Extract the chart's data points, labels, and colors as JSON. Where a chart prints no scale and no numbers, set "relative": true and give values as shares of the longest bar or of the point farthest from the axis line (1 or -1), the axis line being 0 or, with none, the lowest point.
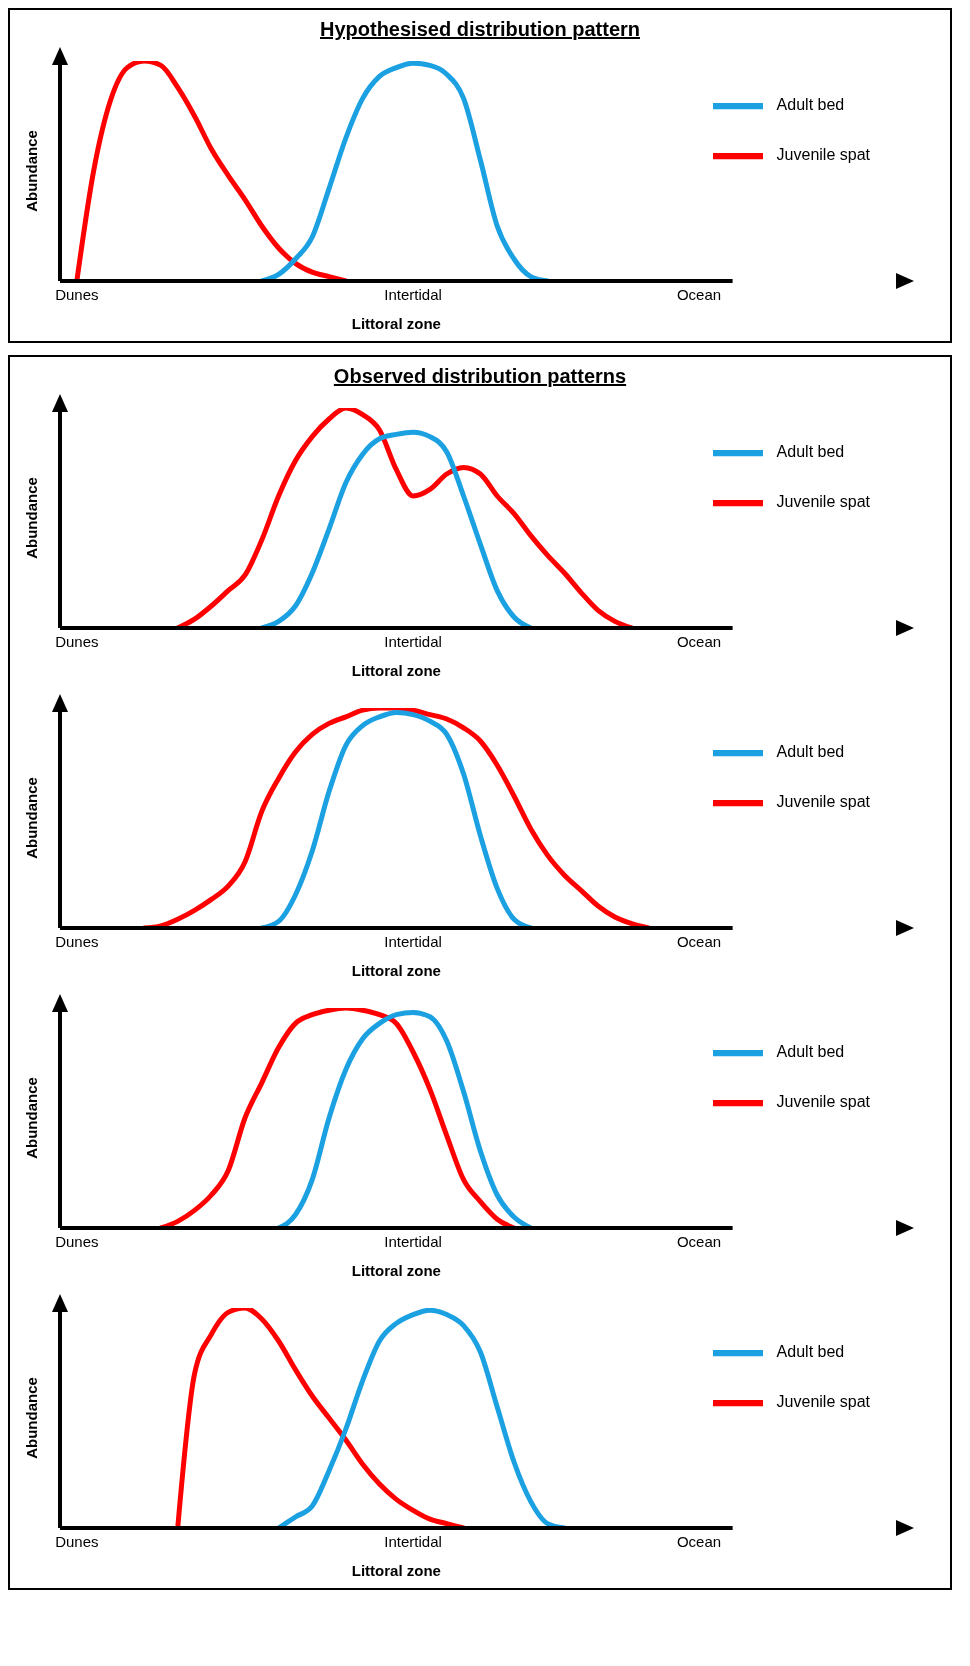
{
  "chart_data": [
    {
      "type": "line",
      "title": "Hypothesised distribution pattern",
      "xlabel": "Littoral zone",
      "ylabel": "Abundance",
      "relative": true,
      "legend": "top right",
      "categories": [
        null,
        "Dunes",
        null,
        null,
        null,
        null,
        null,
        null,
        null,
        null,
        null,
        null,
        null,
        null,
        null,
        null,
        null,
        null,
        null,
        null,
        null,
        "Intertidal",
        null,
        null,
        null,
        null,
        null,
        null,
        null,
        null,
        null,
        null,
        null,
        null,
        null,
        null,
        null,
        null,
        "Ocean",
        null,
        null
      ],
      "series": [
        {
          "name": "Juvenile spat",
          "color": "#ff0000",
          "values": [
            null,
            0,
            0.5,
            0.82,
            0.97,
            1.0,
            0.98,
            0.88,
            0.75,
            0.6,
            0.48,
            0.37,
            0.25,
            0.15,
            0.08,
            0.04,
            0.02,
            0,
            null,
            null,
            null,
            null,
            null,
            null,
            null,
            null,
            null,
            null,
            null,
            null,
            null,
            null,
            null,
            null,
            null,
            null,
            null,
            null,
            null,
            null,
            null
          ]
        },
        {
          "name": "Adult bed",
          "color": "#1ba1e2",
          "values": [
            null,
            null,
            null,
            null,
            null,
            null,
            null,
            null,
            null,
            null,
            null,
            null,
            0,
            0.03,
            0.1,
            0.2,
            0.42,
            0.65,
            0.83,
            0.93,
            0.97,
            0.99,
            0.98,
            0.94,
            0.83,
            0.55,
            0.25,
            0.1,
            0.02,
            0,
            null,
            null,
            null,
            null,
            null,
            null,
            null,
            null,
            null,
            null,
            null
          ]
        }
      ]
    },
    {
      "type": "line",
      "title": "Observed distribution patterns",
      "xlabel": "Littoral zone",
      "ylabel": "Abundance",
      "relative": true,
      "legend": "top right",
      "categories": [
        null,
        "Dunes",
        null,
        null,
        null,
        null,
        null,
        null,
        null,
        null,
        null,
        null,
        null,
        null,
        null,
        null,
        null,
        null,
        null,
        null,
        null,
        "Intertidal",
        null,
        null,
        null,
        null,
        null,
        null,
        null,
        null,
        null,
        null,
        null,
        null,
        null,
        null,
        null,
        null,
        "Ocean",
        null,
        null
      ],
      "series": [
        {
          "name": "Juvenile spat",
          "color": "#ff0000",
          "values": [
            null,
            null,
            null,
            null,
            null,
            null,
            null,
            0,
            0.04,
            0.1,
            0.17,
            0.24,
            0.4,
            0.6,
            0.76,
            0.87,
            0.95,
            1.0,
            0.97,
            0.9,
            0.72,
            0.6,
            0.63,
            0.7,
            0.73,
            0.7,
            0.6,
            0.52,
            0.42,
            0.33,
            0.25,
            0.16,
            0.08,
            0.03,
            0,
            null,
            null,
            null,
            null,
            null,
            null
          ]
        },
        {
          "name": "Adult bed",
          "color": "#1ba1e2",
          "values": [
            null,
            null,
            null,
            null,
            null,
            null,
            null,
            null,
            null,
            null,
            null,
            null,
            0,
            0.03,
            0.1,
            0.25,
            0.45,
            0.66,
            0.79,
            0.86,
            0.88,
            0.89,
            0.87,
            0.8,
            0.6,
            0.38,
            0.17,
            0.05,
            0,
            null,
            null,
            null,
            null,
            null,
            null,
            null,
            null,
            null,
            null,
            null,
            null
          ]
        }
      ]
    },
    {
      "type": "line",
      "xlabel": "Littoral zone",
      "ylabel": "Abundance",
      "relative": true,
      "legend": "top right",
      "categories": [
        null,
        "Dunes",
        null,
        null,
        null,
        null,
        null,
        null,
        null,
        null,
        null,
        null,
        null,
        null,
        null,
        null,
        null,
        null,
        null,
        null,
        null,
        "Intertidal",
        null,
        null,
        null,
        null,
        null,
        null,
        null,
        null,
        null,
        null,
        null,
        null,
        null,
        null,
        null,
        null,
        "Ocean",
        null,
        null
      ],
      "series": [
        {
          "name": "Juvenile spat",
          "color": "#ff0000",
          "values": [
            null,
            null,
            null,
            null,
            null,
            0,
            0.01,
            0.04,
            0.08,
            0.13,
            0.19,
            0.3,
            0.53,
            0.68,
            0.8,
            0.88,
            0.93,
            0.96,
            0.99,
            1.0,
            1.0,
            0.99,
            0.97,
            0.95,
            0.91,
            0.85,
            0.74,
            0.6,
            0.45,
            0.33,
            0.24,
            0.17,
            0.1,
            0.05,
            0.02,
            0,
            null,
            null,
            null,
            null,
            null
          ]
        },
        {
          "name": "Adult bed",
          "color": "#1ba1e2",
          "values": [
            null,
            null,
            null,
            null,
            null,
            null,
            null,
            null,
            null,
            null,
            null,
            null,
            0,
            0.03,
            0.15,
            0.35,
            0.62,
            0.83,
            0.92,
            0.96,
            0.98,
            0.97,
            0.94,
            0.88,
            0.7,
            0.42,
            0.18,
            0.04,
            0,
            null,
            null,
            null,
            null,
            null,
            null,
            null,
            null,
            null,
            null,
            null,
            null
          ]
        }
      ]
    },
    {
      "type": "line",
      "xlabel": "Littoral zone",
      "ylabel": "Abundance",
      "relative": true,
      "legend": "top right",
      "categories": [
        null,
        "Dunes",
        null,
        null,
        null,
        null,
        null,
        null,
        null,
        null,
        null,
        null,
        null,
        null,
        null,
        null,
        null,
        null,
        null,
        null,
        null,
        "Intertidal",
        null,
        null,
        null,
        null,
        null,
        null,
        null,
        null,
        null,
        null,
        null,
        null,
        null,
        null,
        null,
        null,
        "Ocean",
        null,
        null
      ],
      "series": [
        {
          "name": "Juvenile spat",
          "color": "#ff0000",
          "values": [
            null,
            null,
            null,
            null,
            null,
            null,
            0,
            0.03,
            0.08,
            0.15,
            0.26,
            0.5,
            0.66,
            0.82,
            0.93,
            0.97,
            0.99,
            1.0,
            0.99,
            0.97,
            0.93,
            0.8,
            0.63,
            0.42,
            0.22,
            0.12,
            0.04,
            0,
            null,
            null,
            null,
            null,
            null,
            null,
            null,
            null,
            null,
            null,
            null,
            null,
            null
          ]
        },
        {
          "name": "Adult bed",
          "color": "#1ba1e2",
          "values": [
            null,
            null,
            null,
            null,
            null,
            null,
            null,
            null,
            null,
            null,
            null,
            null,
            null,
            0,
            0.06,
            0.22,
            0.5,
            0.72,
            0.86,
            0.93,
            0.97,
            0.98,
            0.96,
            0.85,
            0.62,
            0.35,
            0.15,
            0.05,
            0,
            null,
            null,
            null,
            null,
            null,
            null,
            null,
            null,
            null,
            null,
            null,
            null
          ]
        }
      ]
    },
    {
      "type": "line",
      "xlabel": "Littoral zone",
      "ylabel": "Abundance",
      "relative": true,
      "legend": "top right",
      "categories": [
        null,
        "Dunes",
        null,
        null,
        null,
        null,
        null,
        null,
        null,
        null,
        null,
        null,
        null,
        null,
        null,
        null,
        null,
        null,
        null,
        null,
        null,
        "Intertidal",
        null,
        null,
        null,
        null,
        null,
        null,
        null,
        null,
        null,
        null,
        null,
        null,
        null,
        null,
        null,
        null,
        "Ocean",
        null,
        null
      ],
      "series": [
        {
          "name": "Juvenile spat",
          "color": "#ff0000",
          "values": [
            null,
            null,
            null,
            null,
            null,
            null,
            null,
            0,
            0.7,
            0.88,
            0.98,
            1.0,
            0.95,
            0.85,
            0.72,
            0.6,
            0.5,
            0.4,
            0.29,
            0.2,
            0.13,
            0.08,
            0.04,
            0.02,
            0,
            null,
            null,
            null,
            null,
            null,
            null,
            null,
            null,
            null,
            null,
            null,
            null,
            null,
            null,
            null,
            null
          ]
        },
        {
          "name": "Adult bed",
          "color": "#1ba1e2",
          "values": [
            null,
            null,
            null,
            null,
            null,
            null,
            null,
            null,
            null,
            null,
            null,
            null,
            null,
            0,
            0.05,
            0.1,
            0.26,
            0.45,
            0.67,
            0.85,
            0.93,
            0.97,
            0.99,
            0.97,
            0.92,
            0.8,
            0.55,
            0.3,
            0.12,
            0.02,
            0,
            null,
            null,
            null,
            null,
            null,
            null,
            null,
            null,
            null,
            null
          ]
        }
      ]
    }
  ]
}
